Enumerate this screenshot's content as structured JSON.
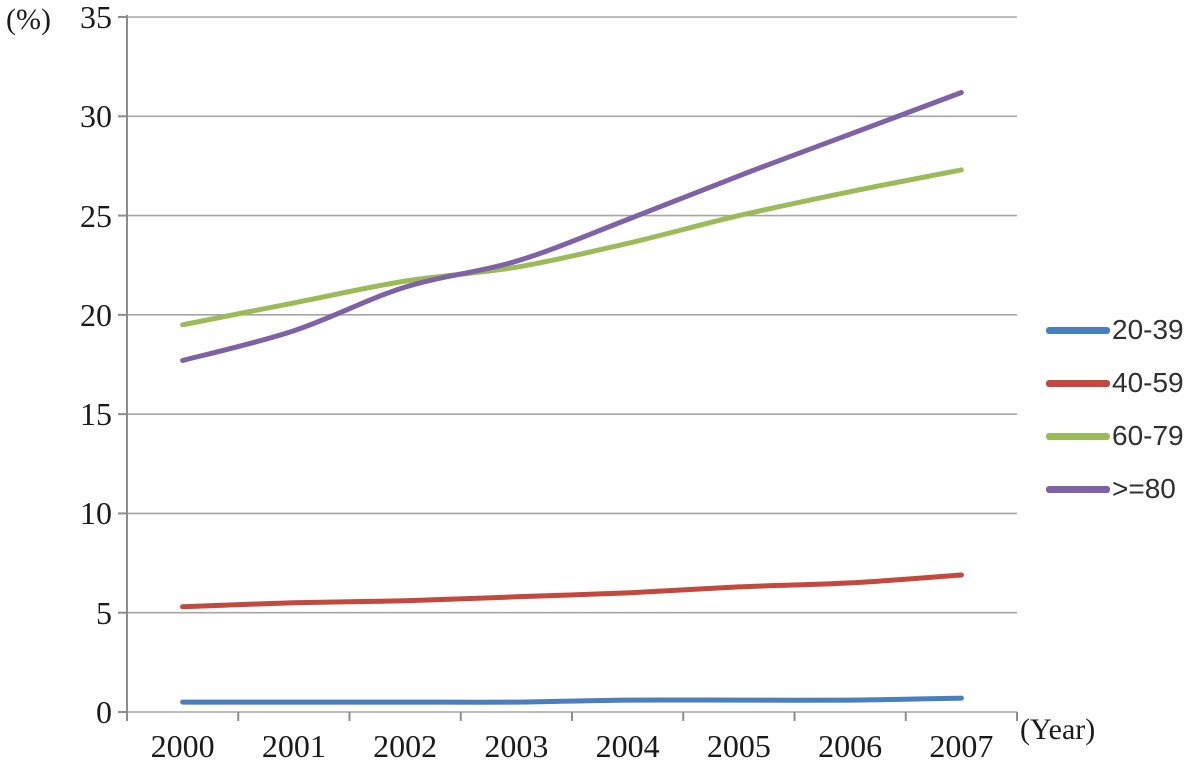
{
  "page": {
    "background": "#ffffff"
  },
  "chart_data": {
    "type": "line",
    "title": "",
    "ylabel": "(%)",
    "xlabel": "(Year)",
    "ylim": [
      0,
      35
    ],
    "ytick_step": 5,
    "yticks": [
      0,
      5,
      10,
      15,
      20,
      25,
      30,
      35
    ],
    "grid": true,
    "grid_color": "#A6A6A6",
    "axis_color": "#8C8C8C",
    "text_color": "#1a1a1a",
    "legend_position": "right",
    "line_smoothing": true,
    "categories": [
      "2000",
      "2001",
      "2002",
      "2003",
      "2004",
      "2005",
      "2006",
      "2007"
    ],
    "series": [
      {
        "name": "20-39",
        "color": "#4A7EBF",
        "values": [
          0.5,
          0.5,
          0.5,
          0.5,
          0.6,
          0.6,
          0.6,
          0.7
        ]
      },
      {
        "name": "40-59",
        "color": "#C3483F",
        "values": [
          5.3,
          5.5,
          5.6,
          5.8,
          6.0,
          6.3,
          6.5,
          6.9
        ]
      },
      {
        "name": "60-79",
        "color": "#9BBB59",
        "values": [
          19.5,
          20.6,
          21.7,
          22.4,
          23.6,
          25.0,
          26.2,
          27.3
        ]
      },
      {
        "name": ">=80",
        "color": "#7E62A5",
        "values": [
          17.7,
          19.2,
          21.4,
          22.7,
          24.8,
          27.0,
          29.1,
          31.2
        ]
      }
    ]
  }
}
